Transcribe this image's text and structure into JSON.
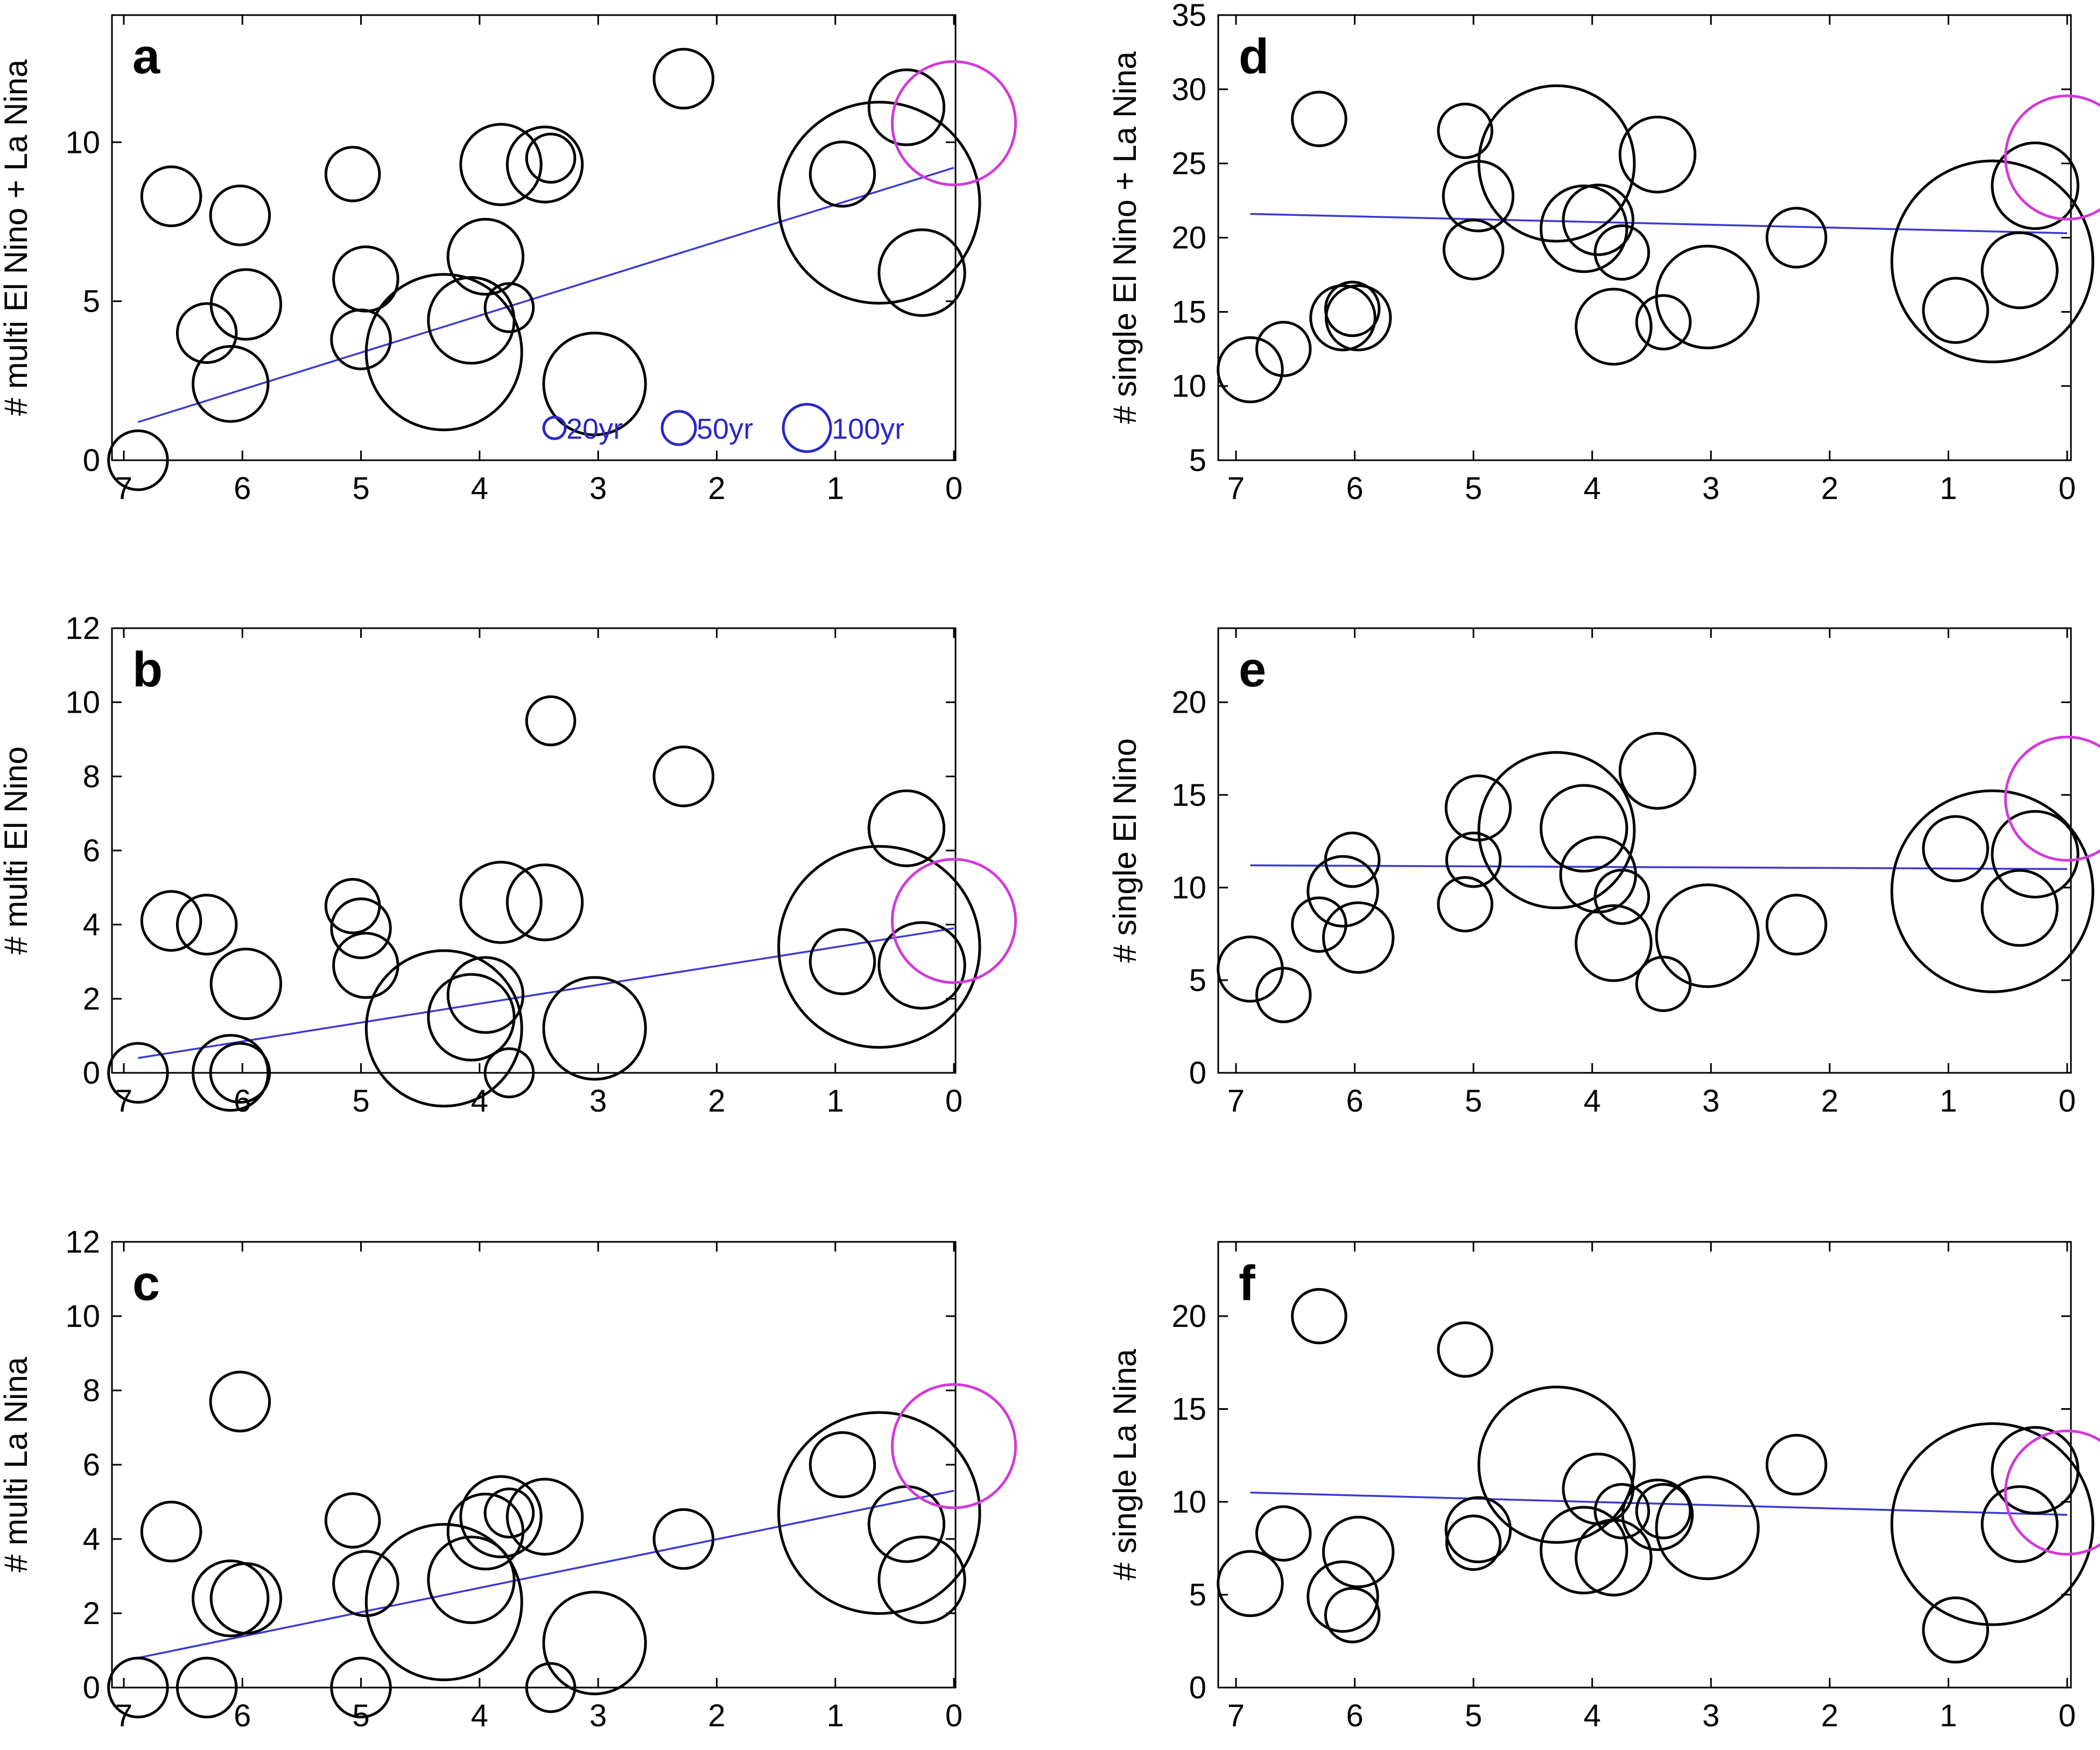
{
  "colors": {
    "points": "#000000",
    "fit_line": "#3a3ad0",
    "present_marker": "#d23ad8",
    "legend": "#2828c8"
  },
  "chart_data": [
    {
      "panel": "a",
      "type": "scatter",
      "ylabel": "# multi El Nino + La Nina",
      "ylim": [
        0,
        14
      ],
      "yticks": [
        0,
        5,
        10
      ],
      "xlim": [
        7,
        0
      ],
      "xticks": [
        7,
        6,
        5,
        4,
        3,
        2,
        1,
        0
      ],
      "points": [
        {
          "x": 6.88,
          "y": 0.0,
          "s": 22
        },
        {
          "x": 6.6,
          "y": 8.3,
          "s": 22
        },
        {
          "x": 6.3,
          "y": 4.0,
          "s": 22
        },
        {
          "x": 6.1,
          "y": 2.4,
          "s": 28
        },
        {
          "x": 6.02,
          "y": 7.7,
          "s": 22
        },
        {
          "x": 5.97,
          "y": 4.9,
          "s": 26
        },
        {
          "x": 5.07,
          "y": 9.0,
          "s": 20
        },
        {
          "x": 5.0,
          "y": 3.8,
          "s": 22
        },
        {
          "x": 4.96,
          "y": 5.7,
          "s": 24
        },
        {
          "x": 4.3,
          "y": 3.4,
          "s": 58
        },
        {
          "x": 4.07,
          "y": 4.4,
          "s": 32
        },
        {
          "x": 3.95,
          "y": 6.4,
          "s": 28
        },
        {
          "x": 3.82,
          "y": 9.3,
          "s": 30
        },
        {
          "x": 3.75,
          "y": 4.8,
          "s": 18
        },
        {
          "x": 3.45,
          "y": 9.3,
          "s": 28
        },
        {
          "x": 3.4,
          "y": 9.5,
          "s": 18
        },
        {
          "x": 3.03,
          "y": 2.4,
          "s": 38
        },
        {
          "x": 2.28,
          "y": 12.0,
          "s": 22
        },
        {
          "x": 0.94,
          "y": 9.0,
          "s": 24
        },
        {
          "x": 0.63,
          "y": 8.1,
          "s": 75
        },
        {
          "x": 0.4,
          "y": 11.1,
          "s": 28
        },
        {
          "x": 0.27,
          "y": 5.9,
          "s": 32
        }
      ],
      "present": {
        "x": 0.0,
        "y": 10.6,
        "s": 46
      },
      "fit": {
        "x": [
          6.88,
          0.0
        ],
        "y": [
          1.2,
          9.2
        ]
      },
      "legend": [
        {
          "label": "20yr",
          "s": 20
        },
        {
          "label": "50yr",
          "s": 31
        },
        {
          "label": "100yr",
          "s": 44
        }
      ]
    },
    {
      "panel": "b",
      "type": "scatter",
      "ylabel": "# multi El Nino",
      "ylim": [
        0,
        12
      ],
      "yticks": [
        0,
        2,
        4,
        6,
        8,
        10,
        12
      ],
      "xlim": [
        7,
        0
      ],
      "xticks": [
        7,
        6,
        5,
        4,
        3,
        2,
        1,
        0
      ],
      "points": [
        {
          "x": 6.88,
          "y": 0.0,
          "s": 22
        },
        {
          "x": 6.6,
          "y": 4.1,
          "s": 22
        },
        {
          "x": 6.3,
          "y": 4.0,
          "s": 22
        },
        {
          "x": 6.1,
          "y": 0.0,
          "s": 28
        },
        {
          "x": 6.02,
          "y": 0.0,
          "s": 22
        },
        {
          "x": 5.97,
          "y": 2.4,
          "s": 26
        },
        {
          "x": 5.07,
          "y": 4.5,
          "s": 20
        },
        {
          "x": 5.0,
          "y": 3.9,
          "s": 22
        },
        {
          "x": 4.96,
          "y": 2.9,
          "s": 24
        },
        {
          "x": 4.3,
          "y": 1.2,
          "s": 58
        },
        {
          "x": 4.07,
          "y": 1.5,
          "s": 32
        },
        {
          "x": 3.95,
          "y": 2.1,
          "s": 28
        },
        {
          "x": 3.82,
          "y": 4.6,
          "s": 30
        },
        {
          "x": 3.75,
          "y": 0.0,
          "s": 18
        },
        {
          "x": 3.45,
          "y": 4.6,
          "s": 28
        },
        {
          "x": 3.4,
          "y": 9.5,
          "s": 18
        },
        {
          "x": 3.03,
          "y": 1.2,
          "s": 38
        },
        {
          "x": 2.28,
          "y": 8.0,
          "s": 22
        },
        {
          "x": 0.94,
          "y": 3.0,
          "s": 24
        },
        {
          "x": 0.63,
          "y": 3.4,
          "s": 75
        },
        {
          "x": 0.4,
          "y": 6.6,
          "s": 28
        },
        {
          "x": 0.27,
          "y": 2.9,
          "s": 32
        }
      ],
      "present": {
        "x": 0.0,
        "y": 4.1,
        "s": 46
      },
      "fit": {
        "x": [
          6.88,
          0.0
        ],
        "y": [
          0.4,
          3.9
        ]
      }
    },
    {
      "panel": "c",
      "type": "scatter",
      "ylabel": "# multi La Nina",
      "ylim": [
        0,
        12
      ],
      "yticks": [
        0,
        2,
        4,
        6,
        8,
        10,
        12
      ],
      "xlim": [
        7,
        0
      ],
      "xticks": [
        7,
        6,
        5,
        4,
        3,
        2,
        1,
        0
      ],
      "points": [
        {
          "x": 6.88,
          "y": 0.0,
          "s": 22
        },
        {
          "x": 6.6,
          "y": 4.2,
          "s": 22
        },
        {
          "x": 6.3,
          "y": 0.0,
          "s": 22
        },
        {
          "x": 6.1,
          "y": 2.4,
          "s": 28
        },
        {
          "x": 6.02,
          "y": 7.7,
          "s": 22
        },
        {
          "x": 5.97,
          "y": 2.4,
          "s": 26
        },
        {
          "x": 5.07,
          "y": 4.5,
          "s": 20
        },
        {
          "x": 5.0,
          "y": 0.0,
          "s": 22
        },
        {
          "x": 4.96,
          "y": 2.8,
          "s": 24
        },
        {
          "x": 4.3,
          "y": 2.3,
          "s": 58
        },
        {
          "x": 4.07,
          "y": 2.9,
          "s": 32
        },
        {
          "x": 3.95,
          "y": 4.2,
          "s": 28
        },
        {
          "x": 3.82,
          "y": 4.6,
          "s": 30
        },
        {
          "x": 3.75,
          "y": 4.7,
          "s": 18
        },
        {
          "x": 3.45,
          "y": 4.6,
          "s": 28
        },
        {
          "x": 3.4,
          "y": 0.0,
          "s": 18
        },
        {
          "x": 3.03,
          "y": 1.2,
          "s": 38
        },
        {
          "x": 2.28,
          "y": 4.0,
          "s": 22
        },
        {
          "x": 0.94,
          "y": 6.0,
          "s": 24
        },
        {
          "x": 0.63,
          "y": 4.7,
          "s": 75
        },
        {
          "x": 0.4,
          "y": 4.4,
          "s": 28
        },
        {
          "x": 0.27,
          "y": 2.9,
          "s": 32
        }
      ],
      "present": {
        "x": 0.0,
        "y": 6.5,
        "s": 46
      },
      "fit": {
        "x": [
          6.88,
          0.0
        ],
        "y": [
          0.8,
          5.3
        ]
      }
    },
    {
      "panel": "d",
      "type": "scatter",
      "ylabel": "# single El Nino + La Nina",
      "ylim": [
        5,
        35
      ],
      "yticks": [
        5,
        10,
        15,
        20,
        25,
        30,
        35
      ],
      "xlim": [
        7,
        0
      ],
      "xticks": [
        7,
        6,
        5,
        4,
        3,
        2,
        1,
        0
      ],
      "points": [
        {
          "x": 6.88,
          "y": 11.1,
          "s": 24
        },
        {
          "x": 6.6,
          "y": 12.5,
          "s": 20
        },
        {
          "x": 6.3,
          "y": 28.0,
          "s": 20
        },
        {
          "x": 6.1,
          "y": 14.6,
          "s": 24
        },
        {
          "x": 6.02,
          "y": 15.2,
          "s": 20
        },
        {
          "x": 5.97,
          "y": 14.6,
          "s": 24
        },
        {
          "x": 5.07,
          "y": 27.2,
          "s": 20
        },
        {
          "x": 5.0,
          "y": 19.2,
          "s": 22
        },
        {
          "x": 4.96,
          "y": 22.8,
          "s": 26
        },
        {
          "x": 4.3,
          "y": 25.0,
          "s": 58
        },
        {
          "x": 4.07,
          "y": 20.6,
          "s": 32
        },
        {
          "x": 3.95,
          "y": 21.2,
          "s": 26
        },
        {
          "x": 3.82,
          "y": 14.0,
          "s": 28
        },
        {
          "x": 3.75,
          "y": 19.0,
          "s": 20
        },
        {
          "x": 3.45,
          "y": 25.6,
          "s": 28
        },
        {
          "x": 3.4,
          "y": 14.3,
          "s": 20
        },
        {
          "x": 3.03,
          "y": 16.0,
          "s": 38
        },
        {
          "x": 2.28,
          "y": 20.0,
          "s": 22
        },
        {
          "x": 0.94,
          "y": 15.1,
          "s": 24
        },
        {
          "x": 0.63,
          "y": 18.4,
          "s": 75
        },
        {
          "x": 0.4,
          "y": 17.8,
          "s": 28
        },
        {
          "x": 0.27,
          "y": 23.5,
          "s": 32
        }
      ],
      "present": {
        "x": 0.0,
        "y": 25.4,
        "s": 46
      },
      "fit": {
        "x": [
          6.88,
          0.0
        ],
        "y": [
          21.6,
          20.3
        ]
      }
    },
    {
      "panel": "e",
      "type": "scatter",
      "ylabel": "# single El Nino",
      "ylim": [
        0,
        24
      ],
      "yticks": [
        0,
        5,
        10,
        15,
        20
      ],
      "xlim": [
        7,
        0
      ],
      "xticks": [
        7,
        6,
        5,
        4,
        3,
        2,
        1,
        0
      ],
      "points": [
        {
          "x": 6.88,
          "y": 5.6,
          "s": 24
        },
        {
          "x": 6.6,
          "y": 4.2,
          "s": 20
        },
        {
          "x": 6.3,
          "y": 8.0,
          "s": 20
        },
        {
          "x": 6.1,
          "y": 9.8,
          "s": 26
        },
        {
          "x": 6.02,
          "y": 11.5,
          "s": 20
        },
        {
          "x": 5.97,
          "y": 7.3,
          "s": 26
        },
        {
          "x": 5.07,
          "y": 9.1,
          "s": 20
        },
        {
          "x": 5.0,
          "y": 11.5,
          "s": 20
        },
        {
          "x": 4.96,
          "y": 14.3,
          "s": 24
        },
        {
          "x": 4.3,
          "y": 13.1,
          "s": 58
        },
        {
          "x": 4.07,
          "y": 13.2,
          "s": 32
        },
        {
          "x": 3.95,
          "y": 10.7,
          "s": 28
        },
        {
          "x": 3.82,
          "y": 7.0,
          "s": 28
        },
        {
          "x": 3.75,
          "y": 9.5,
          "s": 20
        },
        {
          "x": 3.45,
          "y": 16.3,
          "s": 28
        },
        {
          "x": 3.4,
          "y": 4.8,
          "s": 20
        },
        {
          "x": 3.03,
          "y": 7.4,
          "s": 38
        },
        {
          "x": 2.28,
          "y": 8.0,
          "s": 22
        },
        {
          "x": 0.94,
          "y": 12.1,
          "s": 24
        },
        {
          "x": 0.63,
          "y": 9.8,
          "s": 75
        },
        {
          "x": 0.4,
          "y": 8.9,
          "s": 28
        },
        {
          "x": 0.27,
          "y": 11.8,
          "s": 32
        }
      ],
      "present": {
        "x": 0.0,
        "y": 14.8,
        "s": 46
      },
      "fit": {
        "x": [
          6.88,
          0.0
        ],
        "y": [
          11.2,
          11.0
        ]
      }
    },
    {
      "panel": "f",
      "type": "scatter",
      "ylabel": "# single La Nina",
      "ylim": [
        0,
        24
      ],
      "yticks": [
        0,
        5,
        10,
        15,
        20
      ],
      "xlim": [
        7,
        0
      ],
      "xticks": [
        7,
        6,
        5,
        4,
        3,
        2,
        1,
        0
      ],
      "points": [
        {
          "x": 6.88,
          "y": 5.6,
          "s": 24
        },
        {
          "x": 6.6,
          "y": 8.3,
          "s": 20
        },
        {
          "x": 6.3,
          "y": 20.0,
          "s": 20
        },
        {
          "x": 6.1,
          "y": 4.9,
          "s": 26
        },
        {
          "x": 6.02,
          "y": 3.9,
          "s": 20
        },
        {
          "x": 5.97,
          "y": 7.3,
          "s": 26
        },
        {
          "x": 5.07,
          "y": 18.2,
          "s": 20
        },
        {
          "x": 5.0,
          "y": 7.8,
          "s": 20
        },
        {
          "x": 4.96,
          "y": 8.5,
          "s": 24
        },
        {
          "x": 4.3,
          "y": 12.0,
          "s": 58
        },
        {
          "x": 4.07,
          "y": 7.4,
          "s": 32
        },
        {
          "x": 3.95,
          "y": 10.7,
          "s": 26
        },
        {
          "x": 3.82,
          "y": 7.0,
          "s": 28
        },
        {
          "x": 3.75,
          "y": 9.5,
          "s": 20
        },
        {
          "x": 3.45,
          "y": 9.3,
          "s": 26
        },
        {
          "x": 3.4,
          "y": 9.5,
          "s": 20
        },
        {
          "x": 3.03,
          "y": 8.6,
          "s": 38
        },
        {
          "x": 2.28,
          "y": 12.0,
          "s": 22
        },
        {
          "x": 0.94,
          "y": 3.1,
          "s": 24
        },
        {
          "x": 0.63,
          "y": 8.8,
          "s": 75
        },
        {
          "x": 0.4,
          "y": 8.8,
          "s": 28
        },
        {
          "x": 0.27,
          "y": 11.7,
          "s": 32
        }
      ],
      "present": {
        "x": 0.0,
        "y": 10.5,
        "s": 46
      },
      "fit": {
        "x": [
          6.88,
          0.0
        ],
        "y": [
          10.5,
          9.3
        ]
      }
    }
  ]
}
